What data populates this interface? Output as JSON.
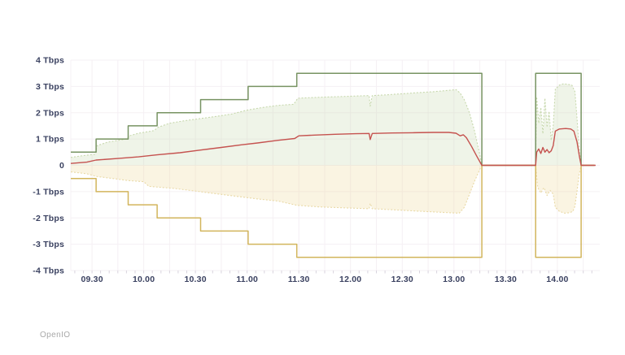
{
  "page": {
    "background": "#ffffff",
    "footer_brand": "OpenIO"
  },
  "chart_data": {
    "type": "area",
    "title": "",
    "xlabel": "",
    "ylabel": "",
    "unit": "Tbps",
    "legend": "none",
    "grid": {
      "show": true,
      "color": "#f5f0f4",
      "tick_color": "#d8d3de",
      "x_gridline_step_hours": 0.25,
      "minor_tick_minutes": 5
    },
    "axis_text_color": "#3a4160",
    "x_domain": [
      9.295,
      14.41
    ],
    "y_domain": [
      -4,
      4
    ],
    "x_ticks": [
      {
        "t": 9.5,
        "label": "09.30"
      },
      {
        "t": 10.0,
        "label": "10.00"
      },
      {
        "t": 10.5,
        "label": "10.30"
      },
      {
        "t": 11.0,
        "label": "11.00"
      },
      {
        "t": 11.5,
        "label": "11.30"
      },
      {
        "t": 12.0,
        "label": "12.00"
      },
      {
        "t": 12.5,
        "label": "12.30"
      },
      {
        "t": 13.0,
        "label": "13.00"
      },
      {
        "t": 13.5,
        "label": "13.30"
      },
      {
        "t": 14.0,
        "label": "14.00"
      }
    ],
    "y_ticks": [
      {
        "v": 4,
        "label": "4 Tbps"
      },
      {
        "v": 3,
        "label": "3 Tbps"
      },
      {
        "v": 2,
        "label": "2 Tbps"
      },
      {
        "v": 1,
        "label": "1 Tbps"
      },
      {
        "v": 0,
        "label": "0"
      },
      {
        "v": -1,
        "label": "-1 Tbps"
      },
      {
        "v": -2,
        "label": "-2 Tbps"
      },
      {
        "v": -3,
        "label": "-3 Tbps"
      },
      {
        "v": -4,
        "label": "-4 Tbps"
      }
    ],
    "series": [
      {
        "name": "throughput-in",
        "type": "area",
        "interp": "linear",
        "color": "#c7d8ad",
        "fill": "rgba(199,216,173,0.28)",
        "dash": "2,2",
        "width": 1.1,
        "points": [
          [
            9.295,
            0.3
          ],
          [
            9.4,
            0.36
          ],
          [
            9.53,
            0.42
          ],
          [
            9.55,
            0.75
          ],
          [
            9.65,
            0.88
          ],
          [
            9.8,
            0.98
          ],
          [
            9.84,
            1.02
          ],
          [
            9.86,
            1.12
          ],
          [
            9.95,
            1.22
          ],
          [
            10.1,
            1.32
          ],
          [
            10.14,
            1.45
          ],
          [
            10.25,
            1.6
          ],
          [
            10.4,
            1.7
          ],
          [
            10.55,
            1.78
          ],
          [
            10.7,
            1.86
          ],
          [
            10.85,
            1.95
          ],
          [
            11.0,
            2.1
          ],
          [
            11.15,
            2.2
          ],
          [
            11.3,
            2.28
          ],
          [
            11.45,
            2.32
          ],
          [
            11.49,
            2.55
          ],
          [
            11.65,
            2.58
          ],
          [
            11.8,
            2.6
          ],
          [
            11.95,
            2.62
          ],
          [
            12.1,
            2.64
          ],
          [
            12.18,
            2.65
          ],
          [
            12.19,
            2.25
          ],
          [
            12.21,
            2.65
          ],
          [
            12.35,
            2.68
          ],
          [
            12.5,
            2.72
          ],
          [
            12.65,
            2.76
          ],
          [
            12.8,
            2.8
          ],
          [
            12.95,
            2.85
          ],
          [
            13.02,
            2.88
          ],
          [
            13.06,
            2.75
          ],
          [
            13.1,
            2.5
          ],
          [
            13.15,
            2.0
          ],
          [
            13.2,
            1.3
          ],
          [
            13.25,
            0.4
          ],
          [
            13.27,
            0
          ],
          [
            13.79,
            0
          ],
          [
            13.8,
            2.6
          ],
          [
            13.82,
            1.6
          ],
          [
            13.84,
            2.2
          ],
          [
            13.86,
            1.2
          ],
          [
            13.88,
            2.55
          ],
          [
            13.9,
            1.45
          ],
          [
            13.92,
            2.05
          ],
          [
            13.94,
            0.95
          ],
          [
            13.96,
            1.5
          ],
          [
            13.98,
            2.9
          ],
          [
            14.02,
            3.05
          ],
          [
            14.06,
            3.1
          ],
          [
            14.1,
            3.08
          ],
          [
            14.14,
            3.05
          ],
          [
            14.17,
            2.8
          ],
          [
            14.19,
            1.8
          ],
          [
            14.21,
            0.7
          ],
          [
            14.23,
            0
          ],
          [
            14.3,
            0
          ]
        ]
      },
      {
        "name": "throughput-out",
        "type": "area",
        "interp": "linear",
        "color": "#e9d9a6",
        "fill": "rgba(238,216,150,0.28)",
        "dash": "2,2",
        "width": 1.1,
        "points": [
          [
            9.295,
            -0.25
          ],
          [
            9.45,
            -0.32
          ],
          [
            9.54,
            -0.42
          ],
          [
            9.7,
            -0.5
          ],
          [
            9.85,
            -0.58
          ],
          [
            10.0,
            -0.62
          ],
          [
            10.05,
            -0.8
          ],
          [
            10.3,
            -0.88
          ],
          [
            10.5,
            -0.98
          ],
          [
            10.7,
            -1.08
          ],
          [
            10.9,
            -1.18
          ],
          [
            11.1,
            -1.28
          ],
          [
            11.3,
            -1.36
          ],
          [
            11.48,
            -1.52
          ],
          [
            11.7,
            -1.58
          ],
          [
            11.95,
            -1.62
          ],
          [
            12.18,
            -1.65
          ],
          [
            12.19,
            -1.45
          ],
          [
            12.21,
            -1.65
          ],
          [
            12.45,
            -1.7
          ],
          [
            12.7,
            -1.75
          ],
          [
            12.95,
            -1.8
          ],
          [
            13.05,
            -1.82
          ],
          [
            13.1,
            -1.6
          ],
          [
            13.15,
            -1.1
          ],
          [
            13.2,
            -0.6
          ],
          [
            13.25,
            -0.15
          ],
          [
            13.27,
            0
          ],
          [
            13.79,
            0
          ],
          [
            13.81,
            -0.85
          ],
          [
            13.84,
            -1.05
          ],
          [
            13.87,
            -0.85
          ],
          [
            13.9,
            -1.15
          ],
          [
            13.93,
            -0.95
          ],
          [
            13.96,
            -1.1
          ],
          [
            13.98,
            -1.6
          ],
          [
            14.02,
            -1.75
          ],
          [
            14.07,
            -1.82
          ],
          [
            14.12,
            -1.8
          ],
          [
            14.15,
            -1.75
          ],
          [
            14.17,
            -1.55
          ],
          [
            14.19,
            -1.0
          ],
          [
            14.21,
            -0.35
          ],
          [
            14.23,
            0
          ],
          [
            14.3,
            0
          ]
        ]
      },
      {
        "name": "link-capacity-in",
        "type": "line",
        "interp": "step",
        "color": "#779362",
        "dash": "",
        "width": 1.5,
        "points": [
          [
            9.295,
            0.5
          ],
          [
            9.54,
            1
          ],
          [
            9.85,
            1.5
          ],
          [
            10.13,
            2
          ],
          [
            10.55,
            2.5
          ],
          [
            11.01,
            3
          ],
          [
            11.48,
            3.5
          ],
          [
            13.27,
            0
          ],
          [
            13.79,
            3.5
          ],
          [
            14.23,
            0
          ],
          [
            14.36,
            0
          ]
        ]
      },
      {
        "name": "link-capacity-out",
        "type": "line",
        "interp": "step",
        "color": "#d2b55c",
        "dash": "",
        "width": 1.5,
        "points": [
          [
            9.295,
            -0.5
          ],
          [
            9.54,
            -1
          ],
          [
            9.85,
            -1.5
          ],
          [
            10.13,
            -2
          ],
          [
            10.55,
            -2.5
          ],
          [
            11.01,
            -3
          ],
          [
            11.48,
            -3.5
          ],
          [
            13.27,
            0
          ],
          [
            13.79,
            -3.5
          ],
          [
            14.23,
            0
          ],
          [
            14.36,
            0
          ]
        ]
      },
      {
        "name": "net-throughput",
        "type": "line",
        "interp": "linear",
        "color": "#c5524f",
        "dash": "",
        "width": 1.4,
        "points": [
          [
            9.295,
            0.07
          ],
          [
            9.45,
            0.12
          ],
          [
            9.54,
            0.2
          ],
          [
            9.75,
            0.26
          ],
          [
            9.95,
            0.32
          ],
          [
            10.13,
            0.4
          ],
          [
            10.35,
            0.48
          ],
          [
            10.55,
            0.58
          ],
          [
            10.75,
            0.68
          ],
          [
            10.95,
            0.78
          ],
          [
            11.1,
            0.85
          ],
          [
            11.3,
            0.95
          ],
          [
            11.46,
            1.02
          ],
          [
            11.5,
            1.12
          ],
          [
            11.65,
            1.15
          ],
          [
            11.85,
            1.18
          ],
          [
            12.05,
            1.2
          ],
          [
            12.18,
            1.21
          ],
          [
            12.19,
            0.98
          ],
          [
            12.21,
            1.21
          ],
          [
            12.4,
            1.23
          ],
          [
            12.6,
            1.24
          ],
          [
            12.8,
            1.25
          ],
          [
            12.95,
            1.25
          ],
          [
            13.02,
            1.22
          ],
          [
            13.06,
            1.12
          ],
          [
            13.09,
            1.16
          ],
          [
            13.12,
            1.05
          ],
          [
            13.17,
            0.72
          ],
          [
            13.22,
            0.35
          ],
          [
            13.27,
            0
          ],
          [
            13.79,
            0
          ],
          [
            13.8,
            0.5
          ],
          [
            13.82,
            0.62
          ],
          [
            13.84,
            0.45
          ],
          [
            13.86,
            0.68
          ],
          [
            13.88,
            0.5
          ],
          [
            13.9,
            0.6
          ],
          [
            13.92,
            0.48
          ],
          [
            13.94,
            0.55
          ],
          [
            13.96,
            0.75
          ],
          [
            13.98,
            1.3
          ],
          [
            14.02,
            1.38
          ],
          [
            14.08,
            1.4
          ],
          [
            14.13,
            1.38
          ],
          [
            14.16,
            1.3
          ],
          [
            14.19,
            0.9
          ],
          [
            14.215,
            0.3
          ],
          [
            14.23,
            0
          ],
          [
            14.37,
            0
          ]
        ]
      }
    ]
  }
}
